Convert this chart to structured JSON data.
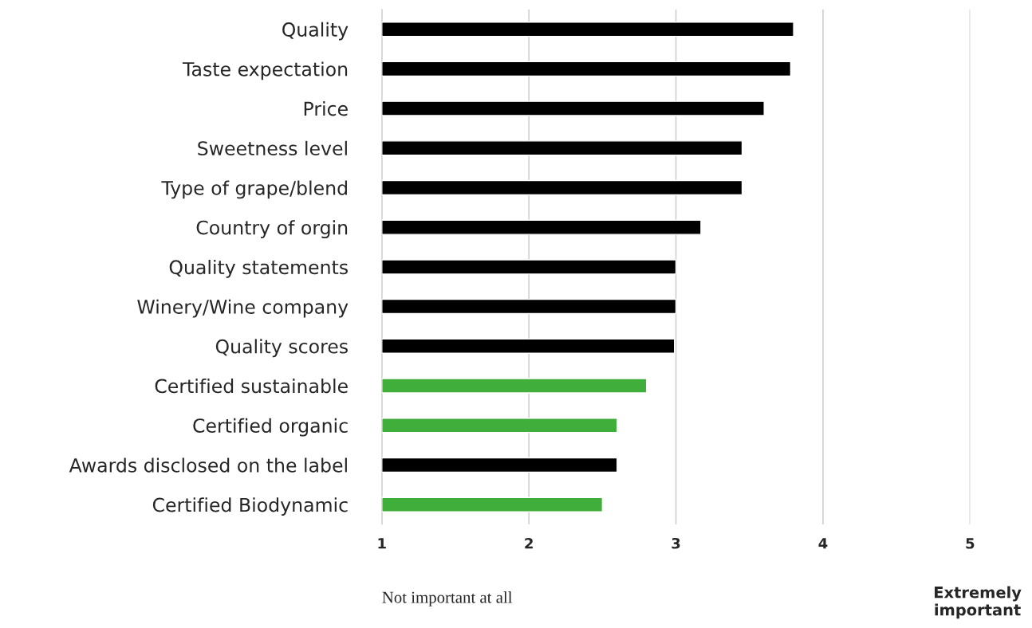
{
  "chart_data": {
    "type": "bar",
    "orientation": "horizontal",
    "categories": [
      "Quality",
      "Taste expectation",
      "Price",
      "Sweetness level",
      "Type of grape/blend",
      "Country of orgin",
      "Quality statements",
      "Winery/Wine company",
      "Quality scores",
      "Certified sustainable",
      "Certified organic",
      "Awards disclosed on the label",
      "Certified Biodynamic"
    ],
    "values": [
      3.8,
      3.78,
      3.6,
      3.45,
      3.45,
      3.17,
      3.0,
      3.0,
      2.99,
      2.8,
      2.6,
      2.6,
      2.5
    ],
    "colors": [
      "#000000",
      "#000000",
      "#000000",
      "#000000",
      "#000000",
      "#000000",
      "#000000",
      "#000000",
      "#000000",
      "#3fae3a",
      "#3fae3a",
      "#000000",
      "#3fae3a"
    ],
    "xlim": [
      1,
      5
    ],
    "xticks": [
      1,
      2,
      3,
      4,
      5
    ],
    "grid": "x",
    "annotations": [
      "Not important at all",
      "Extremely important"
    ]
  }
}
